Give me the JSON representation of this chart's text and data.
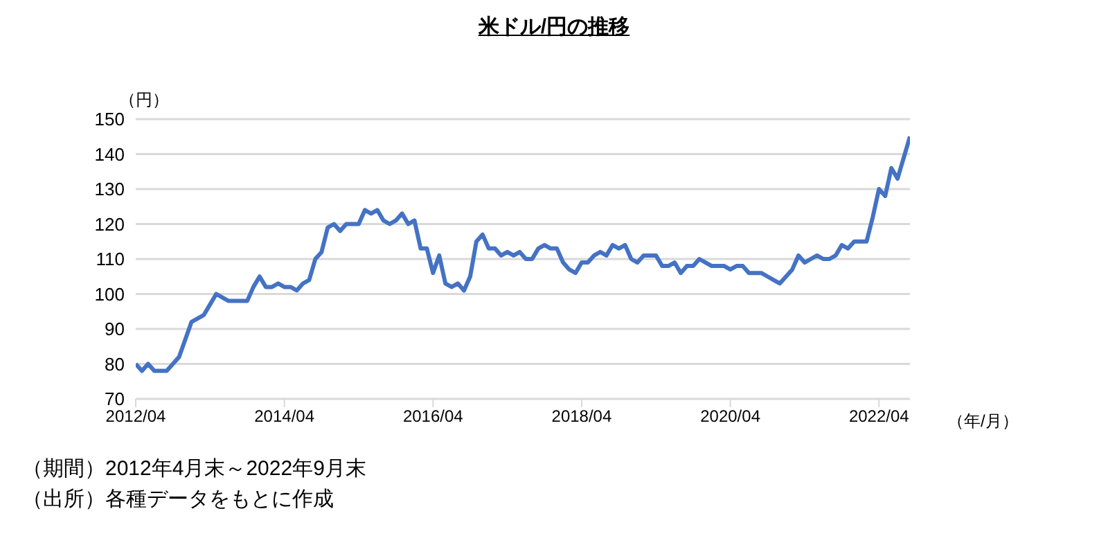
{
  "chart_data": {
    "type": "line",
    "title": "米ドル/円の推移",
    "ylabel": "（円）",
    "xlabel": "（年/月）",
    "x": [
      "2012-04",
      "2012-05",
      "2012-06",
      "2012-07",
      "2012-08",
      "2012-09",
      "2012-10",
      "2012-11",
      "2012-12",
      "2013-01",
      "2013-02",
      "2013-03",
      "2013-04",
      "2013-05",
      "2013-06",
      "2013-07",
      "2013-08",
      "2013-09",
      "2013-10",
      "2013-11",
      "2013-12",
      "2014-01",
      "2014-02",
      "2014-03",
      "2014-04",
      "2014-05",
      "2014-06",
      "2014-07",
      "2014-08",
      "2014-09",
      "2014-10",
      "2014-11",
      "2014-12",
      "2015-01",
      "2015-02",
      "2015-03",
      "2015-04",
      "2015-05",
      "2015-06",
      "2015-07",
      "2015-08",
      "2015-09",
      "2015-10",
      "2015-11",
      "2015-12",
      "2016-01",
      "2016-02",
      "2016-03",
      "2016-04",
      "2016-05",
      "2016-06",
      "2016-07",
      "2016-08",
      "2016-09",
      "2016-10",
      "2016-11",
      "2016-12",
      "2017-01",
      "2017-02",
      "2017-03",
      "2017-04",
      "2017-05",
      "2017-06",
      "2017-07",
      "2017-08",
      "2017-09",
      "2017-10",
      "2017-11",
      "2017-12",
      "2018-01",
      "2018-02",
      "2018-03",
      "2018-04",
      "2018-05",
      "2018-06",
      "2018-07",
      "2018-08",
      "2018-09",
      "2018-10",
      "2018-11",
      "2018-12",
      "2019-01",
      "2019-02",
      "2019-03",
      "2019-04",
      "2019-05",
      "2019-06",
      "2019-07",
      "2019-08",
      "2019-09",
      "2019-10",
      "2019-11",
      "2019-12",
      "2020-01",
      "2020-02",
      "2020-03",
      "2020-04",
      "2020-05",
      "2020-06",
      "2020-07",
      "2020-08",
      "2020-09",
      "2020-10",
      "2020-11",
      "2020-12",
      "2021-01",
      "2021-02",
      "2021-03",
      "2021-04",
      "2021-05",
      "2021-06",
      "2021-07",
      "2021-08",
      "2021-09",
      "2021-10",
      "2021-11",
      "2021-12",
      "2022-01",
      "2022-02",
      "2022-03",
      "2022-04",
      "2022-05",
      "2022-06",
      "2022-07",
      "2022-08",
      "2022-09"
    ],
    "series": [
      {
        "color": "#4472c4",
        "values": [
          80,
          78,
          80,
          78,
          78,
          78,
          80,
          82,
          87,
          92,
          93,
          94,
          97,
          100,
          99,
          98,
          98,
          98,
          98,
          102,
          105,
          102,
          102,
          103,
          102,
          102,
          101,
          103,
          104,
          110,
          112,
          119,
          120,
          118,
          120,
          120,
          120,
          124,
          123,
          124,
          121,
          120,
          121,
          123,
          120,
          121,
          113,
          113,
          106,
          111,
          103,
          102,
          103,
          101,
          105,
          115,
          117,
          113,
          113,
          111,
          112,
          111,
          112,
          110,
          110,
          113,
          114,
          113,
          113,
          109,
          107,
          106,
          109,
          109,
          111,
          112,
          111,
          114,
          113,
          114,
          110,
          109,
          111,
          111,
          111,
          108,
          108,
          109,
          106,
          108,
          108,
          110,
          109,
          108,
          108,
          108,
          107,
          108,
          108,
          106,
          106,
          106,
          105,
          104,
          103,
          105,
          107,
          111,
          109,
          110,
          111,
          110,
          110,
          111,
          114,
          113,
          115,
          115,
          115,
          122,
          130,
          128,
          136,
          133,
          139,
          145
        ]
      }
    ],
    "xlim": [
      "2012-04",
      "2022-09"
    ],
    "xticks": [
      {
        "value": "2012-04",
        "label": "2012/04"
      },
      {
        "value": "2014-04",
        "label": "2014/04"
      },
      {
        "value": "2016-04",
        "label": "2016/04"
      },
      {
        "value": "2018-04",
        "label": "2018/04"
      },
      {
        "value": "2020-04",
        "label": "2020/04"
      },
      {
        "value": "2022-04",
        "label": "2022/04"
      }
    ],
    "ylim": [
      70,
      150
    ],
    "yticks": [
      70,
      80,
      90,
      100,
      110,
      120,
      130,
      140,
      150
    ],
    "grid": "y",
    "annotations": [
      "（期間）2012年4月末～2022年9月末",
      "（出所）各種データをもとに作成"
    ]
  }
}
